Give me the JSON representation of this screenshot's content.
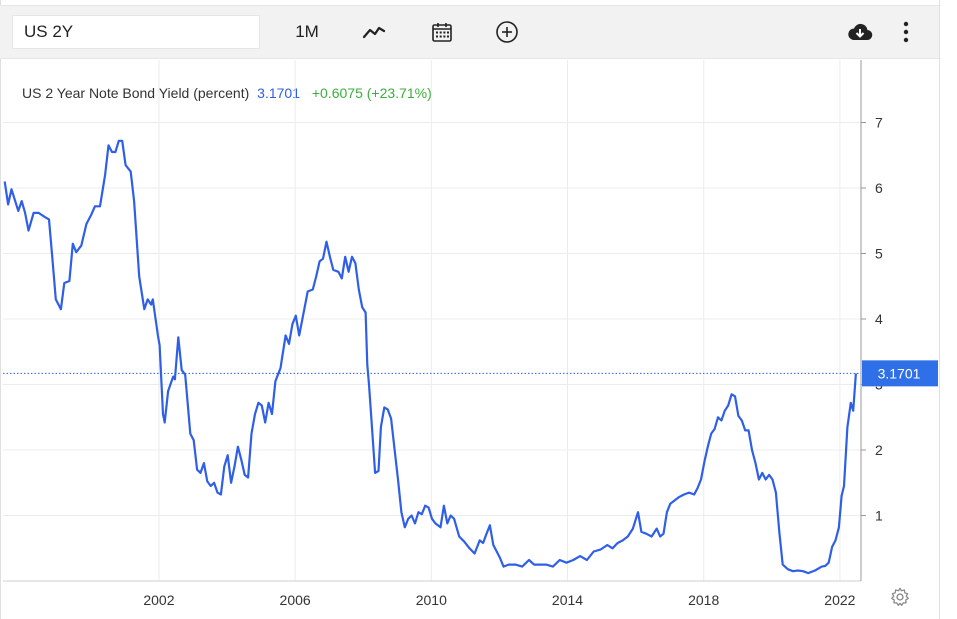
{
  "toolbar": {
    "symbol": "US 2Y",
    "range": "1M",
    "icons": [
      "line-chart-icon",
      "calendar-icon",
      "add-circle-icon",
      "download-cloud-icon",
      "more-vertical-icon",
      "gear-icon"
    ]
  },
  "legend": {
    "name": "US 2 Year Note Bond Yield (percent)",
    "value": "3.1701",
    "change": "+0.6075 (+23.71%)"
  },
  "colors": {
    "line": "#2f5fe8",
    "change": "#3cae3c",
    "grid": "#ececec",
    "label_bg": "#2f6fe8"
  },
  "chart_data": {
    "type": "line",
    "title": "US 2 Year Note Bond Yield (percent)",
    "xlabel": "",
    "ylabel": "",
    "x_ticks": [
      "2002",
      "2006",
      "2010",
      "2014",
      "2018",
      "2022"
    ],
    "y_ticks": [
      "1",
      "2",
      "3",
      "4",
      "5",
      "6",
      "7"
    ],
    "ylim": [
      0,
      7.9
    ],
    "xlim": [
      1997.45,
      2022.65
    ],
    "y_axis_side": "right",
    "grid": true,
    "last_value_label": "3.1701",
    "series": [
      {
        "values": [
          [
            1997.5,
            6.1
          ],
          [
            1997.6,
            5.75
          ],
          [
            1997.7,
            5.98
          ],
          [
            1997.9,
            5.65
          ],
          [
            1998.0,
            5.8
          ],
          [
            1998.1,
            5.62
          ],
          [
            1998.2,
            5.35
          ],
          [
            1998.35,
            5.62
          ],
          [
            1998.5,
            5.62
          ],
          [
            1998.7,
            5.55
          ],
          [
            1998.8,
            5.52
          ],
          [
            1998.9,
            4.92
          ],
          [
            1999.0,
            4.3
          ],
          [
            1999.15,
            4.15
          ],
          [
            1999.25,
            4.55
          ],
          [
            1999.4,
            4.58
          ],
          [
            1999.5,
            5.15
          ],
          [
            1999.6,
            5.02
          ],
          [
            1999.75,
            5.12
          ],
          [
            1999.9,
            5.45
          ],
          [
            2000.05,
            5.6
          ],
          [
            2000.15,
            5.72
          ],
          [
            2000.3,
            5.72
          ],
          [
            2000.45,
            6.2
          ],
          [
            2000.55,
            6.65
          ],
          [
            2000.65,
            6.55
          ],
          [
            2000.75,
            6.55
          ],
          [
            2000.85,
            6.72
          ],
          [
            2000.95,
            6.72
          ],
          [
            2001.05,
            6.35
          ],
          [
            2001.2,
            6.25
          ],
          [
            2001.3,
            5.8
          ],
          [
            2001.45,
            4.65
          ],
          [
            2001.6,
            4.15
          ],
          [
            2001.7,
            4.3
          ],
          [
            2001.8,
            4.22
          ],
          [
            2001.85,
            4.3
          ],
          [
            2002.0,
            3.75
          ],
          [
            2002.05,
            3.6
          ],
          [
            2002.15,
            2.55
          ],
          [
            2002.2,
            2.42
          ],
          [
            2002.3,
            2.9
          ],
          [
            2002.45,
            3.12
          ],
          [
            2002.5,
            3.08
          ],
          [
            2002.6,
            3.72
          ],
          [
            2002.7,
            3.22
          ],
          [
            2002.8,
            3.15
          ],
          [
            2002.95,
            2.25
          ],
          [
            2003.05,
            2.15
          ],
          [
            2003.15,
            1.7
          ],
          [
            2003.25,
            1.65
          ],
          [
            2003.35,
            1.8
          ],
          [
            2003.45,
            1.52
          ],
          [
            2003.55,
            1.45
          ],
          [
            2003.65,
            1.5
          ],
          [
            2003.75,
            1.35
          ],
          [
            2003.85,
            1.32
          ],
          [
            2003.95,
            1.75
          ],
          [
            2004.05,
            1.92
          ],
          [
            2004.15,
            1.5
          ],
          [
            2004.25,
            1.75
          ],
          [
            2004.35,
            2.05
          ],
          [
            2004.45,
            1.85
          ],
          [
            2004.55,
            1.62
          ],
          [
            2004.65,
            1.58
          ],
          [
            2004.75,
            2.25
          ],
          [
            2004.85,
            2.55
          ],
          [
            2004.95,
            2.72
          ],
          [
            2005.05,
            2.68
          ],
          [
            2005.15,
            2.42
          ],
          [
            2005.25,
            2.72
          ],
          [
            2005.35,
            2.55
          ],
          [
            2005.45,
            3.05
          ],
          [
            2005.6,
            3.25
          ],
          [
            2005.75,
            3.75
          ],
          [
            2005.85,
            3.62
          ],
          [
            2005.95,
            3.92
          ],
          [
            2006.05,
            4.05
          ],
          [
            2006.15,
            3.75
          ],
          [
            2006.3,
            4.15
          ],
          [
            2006.4,
            4.42
          ],
          [
            2006.55,
            4.45
          ],
          [
            2006.65,
            4.65
          ],
          [
            2006.75,
            4.88
          ],
          [
            2006.85,
            4.92
          ],
          [
            2006.95,
            5.18
          ],
          [
            2007.05,
            4.95
          ],
          [
            2007.15,
            4.75
          ],
          [
            2007.3,
            4.72
          ],
          [
            2007.4,
            4.62
          ],
          [
            2007.5,
            4.95
          ],
          [
            2007.6,
            4.72
          ],
          [
            2007.7,
            4.95
          ],
          [
            2007.8,
            4.85
          ],
          [
            2007.9,
            4.45
          ],
          [
            2008.0,
            4.18
          ],
          [
            2008.1,
            4.1
          ],
          [
            2008.15,
            3.3
          ],
          [
            2008.2,
            3.0
          ],
          [
            2008.3,
            2.25
          ],
          [
            2008.38,
            1.65
          ],
          [
            2008.48,
            1.68
          ],
          [
            2008.55,
            2.35
          ],
          [
            2008.65,
            2.65
          ],
          [
            2008.75,
            2.62
          ],
          [
            2008.85,
            2.48
          ],
          [
            2008.95,
            2.02
          ],
          [
            2009.05,
            1.55
          ],
          [
            2009.15,
            1.05
          ],
          [
            2009.25,
            0.82
          ],
          [
            2009.35,
            0.95
          ],
          [
            2009.45,
            1.0
          ],
          [
            2009.55,
            0.88
          ],
          [
            2009.65,
            1.05
          ],
          [
            2009.75,
            1.02
          ],
          [
            2009.85,
            1.15
          ],
          [
            2009.95,
            1.12
          ],
          [
            2010.05,
            0.95
          ],
          [
            2010.15,
            0.88
          ],
          [
            2010.3,
            0.82
          ],
          [
            2010.4,
            1.15
          ],
          [
            2010.5,
            0.88
          ],
          [
            2010.6,
            1.0
          ],
          [
            2010.7,
            0.95
          ],
          [
            2010.85,
            0.68
          ],
          [
            2011.0,
            0.6
          ],
          [
            2011.15,
            0.5
          ],
          [
            2011.3,
            0.42
          ],
          [
            2011.45,
            0.62
          ],
          [
            2011.55,
            0.58
          ],
          [
            2011.65,
            0.72
          ],
          [
            2011.75,
            0.85
          ],
          [
            2011.85,
            0.55
          ],
          [
            2011.95,
            0.45
          ],
          [
            2012.05,
            0.35
          ],
          [
            2012.15,
            0.22
          ],
          [
            2012.3,
            0.25
          ],
          [
            2012.5,
            0.25
          ],
          [
            2012.7,
            0.22
          ],
          [
            2012.9,
            0.32
          ],
          [
            2013.05,
            0.25
          ],
          [
            2013.2,
            0.25
          ],
          [
            2013.4,
            0.25
          ],
          [
            2013.6,
            0.22
          ],
          [
            2013.8,
            0.32
          ],
          [
            2014.0,
            0.28
          ],
          [
            2014.2,
            0.32
          ],
          [
            2014.4,
            0.38
          ],
          [
            2014.6,
            0.32
          ],
          [
            2014.8,
            0.45
          ],
          [
            2015.0,
            0.48
          ],
          [
            2015.2,
            0.55
          ],
          [
            2015.35,
            0.5
          ],
          [
            2015.5,
            0.58
          ],
          [
            2015.65,
            0.62
          ],
          [
            2015.8,
            0.68
          ],
          [
            2015.95,
            0.8
          ],
          [
            2016.1,
            1.05
          ],
          [
            2016.2,
            0.75
          ],
          [
            2016.35,
            0.72
          ],
          [
            2016.5,
            0.68
          ],
          [
            2016.65,
            0.8
          ],
          [
            2016.75,
            0.68
          ],
          [
            2016.85,
            0.72
          ],
          [
            2016.95,
            1.05
          ],
          [
            2017.05,
            1.18
          ],
          [
            2017.15,
            1.22
          ],
          [
            2017.3,
            1.28
          ],
          [
            2017.45,
            1.32
          ],
          [
            2017.6,
            1.35
          ],
          [
            2017.75,
            1.32
          ],
          [
            2017.85,
            1.42
          ],
          [
            2017.95,
            1.55
          ],
          [
            2018.05,
            1.82
          ],
          [
            2018.15,
            2.05
          ],
          [
            2018.25,
            2.25
          ],
          [
            2018.35,
            2.32
          ],
          [
            2018.45,
            2.5
          ],
          [
            2018.55,
            2.45
          ],
          [
            2018.65,
            2.6
          ],
          [
            2018.75,
            2.68
          ],
          [
            2018.85,
            2.85
          ],
          [
            2018.95,
            2.82
          ],
          [
            2019.05,
            2.52
          ],
          [
            2019.15,
            2.45
          ],
          [
            2019.25,
            2.3
          ],
          [
            2019.35,
            2.3
          ],
          [
            2019.45,
            2.0
          ],
          [
            2019.55,
            1.8
          ],
          [
            2019.65,
            1.55
          ],
          [
            2019.75,
            1.65
          ],
          [
            2019.85,
            1.55
          ],
          [
            2019.95,
            1.62
          ],
          [
            2020.05,
            1.55
          ],
          [
            2020.15,
            1.35
          ],
          [
            2020.25,
            0.75
          ],
          [
            2020.35,
            0.25
          ],
          [
            2020.5,
            0.18
          ],
          [
            2020.65,
            0.15
          ],
          [
            2020.8,
            0.16
          ],
          [
            2020.95,
            0.15
          ],
          [
            2021.1,
            0.12
          ],
          [
            2021.3,
            0.16
          ],
          [
            2021.5,
            0.22
          ],
          [
            2021.6,
            0.23
          ],
          [
            2021.7,
            0.28
          ],
          [
            2021.8,
            0.52
          ],
          [
            2021.9,
            0.62
          ],
          [
            2022.0,
            0.82
          ],
          [
            2022.08,
            1.3
          ],
          [
            2022.15,
            1.45
          ],
          [
            2022.25,
            2.35
          ],
          [
            2022.35,
            2.72
          ],
          [
            2022.42,
            2.6
          ],
          [
            2022.5,
            3.1701
          ]
        ]
      }
    ]
  }
}
